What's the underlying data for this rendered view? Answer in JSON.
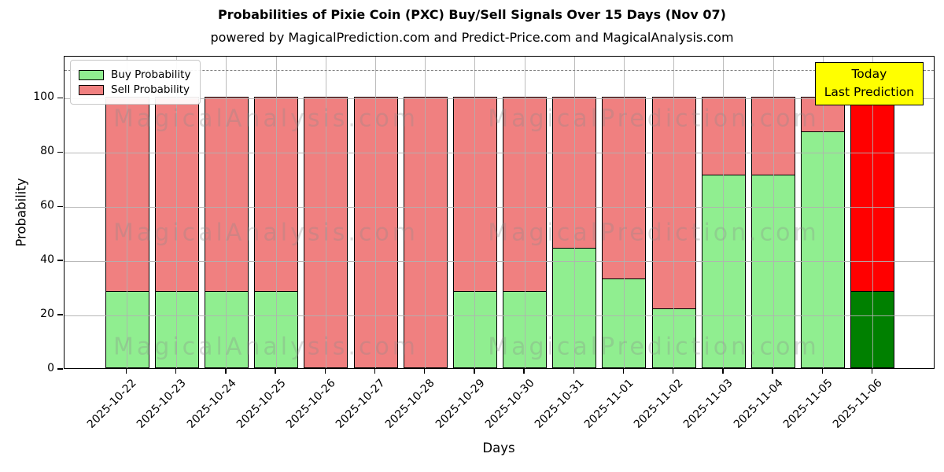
{
  "title": "Probabilities of Pixie Coin (PXC) Buy/Sell Signals Over 15 Days (Nov 07)",
  "subtitle": "powered by MagicalPrediction.com and Predict-Price.com and MagicalAnalysis.com",
  "axes": {
    "x_label": "Days",
    "y_label": "Probability",
    "y_ticks": [
      0,
      20,
      40,
      60,
      80,
      100
    ],
    "ylim": [
      0,
      115.5
    ],
    "dashed_line_y": 110.6
  },
  "legend": {
    "items": [
      {
        "label": "Buy Probability",
        "color": "#90ee90"
      },
      {
        "label": "Sell Probability",
        "color": "#f08080"
      }
    ]
  },
  "annotation": {
    "line1": "Today",
    "line2": "Last Prediction",
    "bg": "#ffff00"
  },
  "watermarks": {
    "left": "MagicalAnalysis.com",
    "right": "MagicalPrediction.com"
  },
  "colors": {
    "buy": "#90ee90",
    "sell": "#f08080",
    "today_buy": "#008000",
    "today_sell": "#ff0000",
    "bar_edge": "#000000",
    "grid": "#b0b0b0",
    "dashed_line": "#7f7f7f",
    "annotation_bg": "#ffff00"
  },
  "chart_data": {
    "type": "bar",
    "stacked": true,
    "title": "Probabilities of Pixie Coin (PXC) Buy/Sell Signals Over 15 Days (Nov 07)",
    "xlabel": "Days",
    "ylabel": "Probability",
    "ylim": [
      0,
      115.5
    ],
    "yticks": [
      0,
      20,
      40,
      60,
      80,
      100
    ],
    "grid": true,
    "legend_position": "upper left",
    "dashed_line_y": 110.6,
    "categories": [
      "2025-10-22",
      "2025-10-23",
      "2025-10-24",
      "2025-10-25",
      "2025-10-26",
      "2025-10-27",
      "2025-10-28",
      "2025-10-29",
      "2025-10-30",
      "2025-10-31",
      "2025-11-01",
      "2025-11-02",
      "2025-11-03",
      "2025-11-04",
      "2025-11-05",
      "2025-11-06"
    ],
    "series": [
      {
        "name": "Buy Probability",
        "values": [
          28.57,
          28.57,
          28.57,
          28.57,
          0,
          0,
          0,
          28.57,
          28.57,
          44.44,
          33.33,
          22.22,
          71.43,
          71.43,
          87.5,
          28.57
        ]
      },
      {
        "name": "Sell Probability",
        "values": [
          71.43,
          71.43,
          71.43,
          71.43,
          100,
          100,
          100,
          71.43,
          71.43,
          55.56,
          66.67,
          77.78,
          28.57,
          28.57,
          12.5,
          71.43
        ]
      }
    ],
    "today_index": 15,
    "today_label": "Today\nLast Prediction"
  }
}
